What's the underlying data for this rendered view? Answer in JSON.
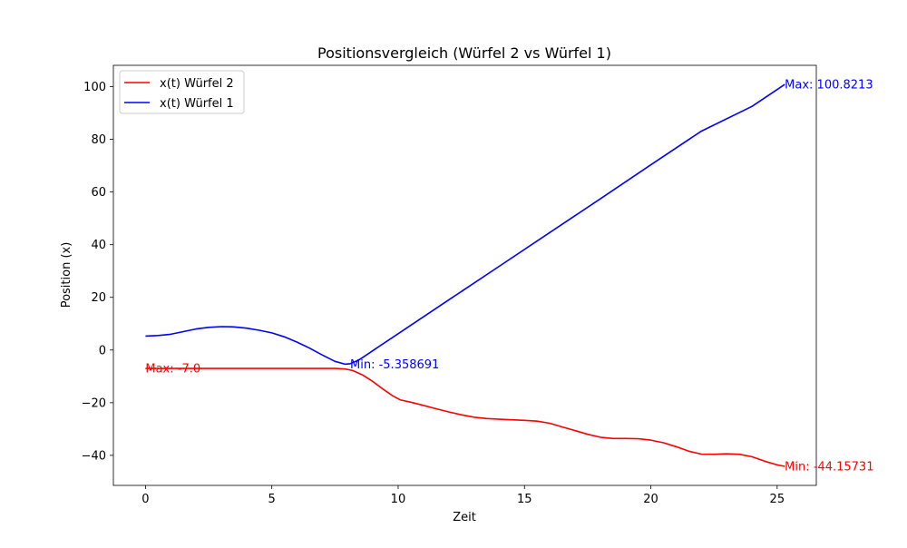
{
  "chart_data": {
    "type": "line",
    "title": "Positionsvergleich (Würfel 2 vs Würfel 1)",
    "xlabel": "Zeit",
    "ylabel": "Position (x)",
    "xlim": [
      -1.27,
      26.55
    ],
    "ylim": [
      -51.4,
      108.1
    ],
    "x_ticks": [
      0,
      5,
      10,
      15,
      20,
      25
    ],
    "y_ticks": [
      -40,
      -20,
      0,
      20,
      40,
      60,
      80,
      100
    ],
    "legend_position": "top-left",
    "grid": false,
    "series": [
      {
        "name": "x(t) Würfel 2",
        "color": "#ff0000",
        "x": [
          0,
          2,
          4,
          6,
          7.5,
          7.9,
          8.2,
          8.6,
          9.0,
          9.4,
          9.8,
          10.1,
          10.5,
          11,
          11.5,
          12,
          12.5,
          13,
          13.5,
          14,
          14.5,
          15,
          15.5,
          16,
          16.5,
          17,
          17.5,
          18,
          18.5,
          19,
          19.5,
          20,
          20.5,
          21,
          21.5,
          22,
          22.5,
          23,
          23.5,
          24,
          24.5,
          25,
          25.3
        ],
        "values": [
          -7.0,
          -7.0,
          -7.0,
          -7.0,
          -7.0,
          -7.2,
          -7.8,
          -9.5,
          -12.0,
          -14.8,
          -17.5,
          -19.0,
          -19.8,
          -21.0,
          -22.3,
          -23.5,
          -24.6,
          -25.5,
          -26.0,
          -26.3,
          -26.5,
          -26.7,
          -27.0,
          -27.8,
          -29.2,
          -30.6,
          -32.0,
          -33.1,
          -33.6,
          -33.6,
          -33.7,
          -34.2,
          -35.2,
          -36.7,
          -38.4,
          -39.5,
          -39.6,
          -39.4,
          -39.6,
          -40.5,
          -42.2,
          -43.6,
          -44.15731
        ]
      },
      {
        "name": "x(t) Würfel 1",
        "color": "#0000ff",
        "x": [
          0,
          0.5,
          1,
          1.5,
          2,
          2.5,
          3,
          3.5,
          4,
          4.5,
          5,
          5.5,
          6,
          6.5,
          7,
          7.5,
          7.9,
          8.1,
          8.4,
          8.6,
          9,
          10,
          12,
          14,
          16,
          18,
          20,
          22,
          24,
          25.3
        ],
        "values": [
          5.3,
          5.5,
          6.0,
          7.0,
          8.0,
          8.6,
          8.9,
          8.8,
          8.3,
          7.5,
          6.5,
          5.0,
          3.0,
          0.7,
          -1.9,
          -4.3,
          -5.358691,
          -5.2,
          -4.0,
          -2.8,
          -0.2,
          6.2,
          19.0,
          31.8,
          44.6,
          57.4,
          70.3,
          83.1,
          92.5,
          100.8213
        ]
      }
    ],
    "annotations": [
      {
        "text": "Max: -7.0",
        "x": 0,
        "y": -7.0,
        "color": "#ff0000"
      },
      {
        "text": "Min: -44.15731",
        "x": 25.3,
        "y": -44.15731,
        "color": "#ff0000"
      },
      {
        "text": "Max: 100.8213",
        "x": 25.3,
        "y": 100.8213,
        "color": "#0000ff"
      },
      {
        "text": "Min: -5.358691",
        "x": 8.1,
        "y": -5.358691,
        "color": "#0000ff"
      }
    ]
  }
}
